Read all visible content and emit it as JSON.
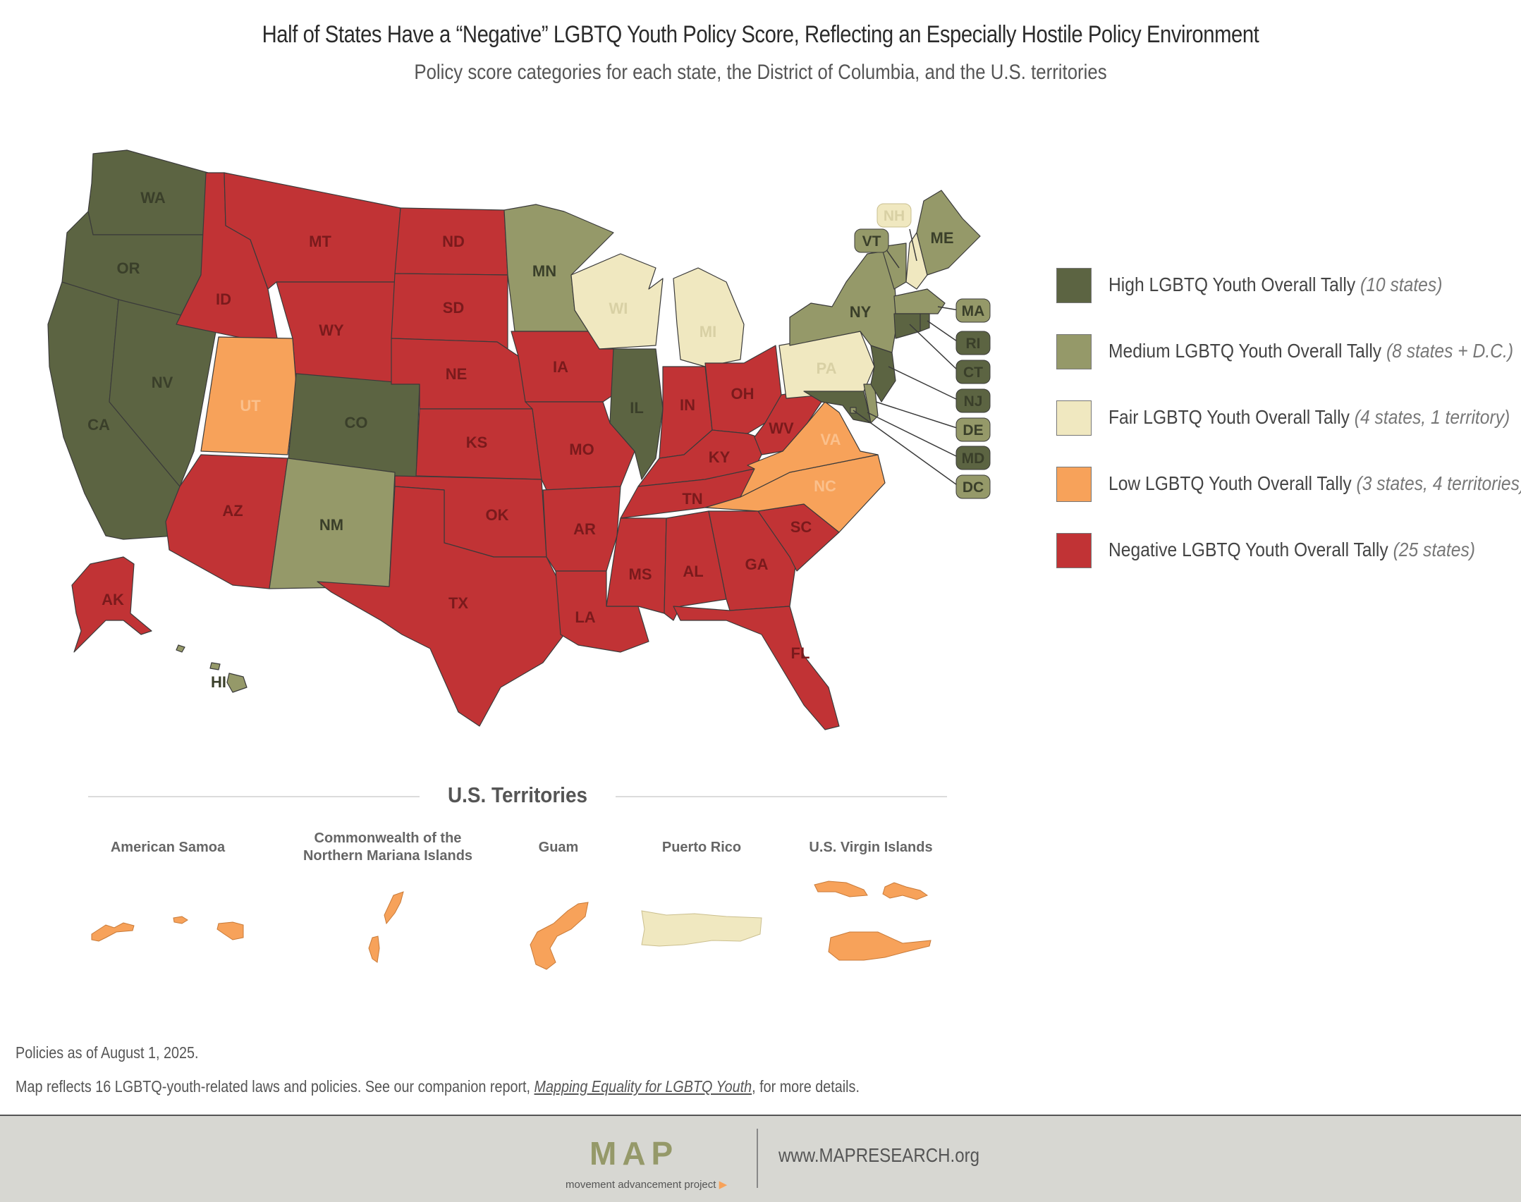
{
  "header": {
    "title": "Half of States Have a “Negative” LGBTQ Youth Policy Score, Reflecting an Especially Hostile Policy Environment",
    "subtitle": "Policy score categories for each state, the District of Columbia, and the U.S. territories"
  },
  "colors": {
    "high": "#5c6442",
    "medium": "#959969",
    "fair": "#f0e8c0",
    "low": "#f7a25a",
    "negative": "#c13335"
  },
  "legend": [
    {
      "key": "high",
      "label": "High LGBTQ Youth Overall Tally",
      "note": "(10 states)"
    },
    {
      "key": "medium",
      "label": "Medium LGBTQ Youth Overall Tally",
      "note": "(8 states + D.C.)"
    },
    {
      "key": "fair",
      "label": "Fair LGBTQ Youth Overall Tally",
      "note": "(4 states, 1 territory)"
    },
    {
      "key": "low",
      "label": "Low LGBTQ Youth Overall Tally",
      "note": "(3 states, 4 territories)"
    },
    {
      "key": "negative",
      "label": "Negative LGBTQ Youth Overall Tally",
      "note": "(25 states)"
    }
  ],
  "states": [
    {
      "code": "WA",
      "category": "high"
    },
    {
      "code": "OR",
      "category": "high"
    },
    {
      "code": "CA",
      "category": "high"
    },
    {
      "code": "NV",
      "category": "high"
    },
    {
      "code": "CO",
      "category": "high"
    },
    {
      "code": "IL",
      "category": "high"
    },
    {
      "code": "NJ",
      "category": "high"
    },
    {
      "code": "RI",
      "category": "high"
    },
    {
      "code": "CT",
      "category": "high"
    },
    {
      "code": "MD",
      "category": "high"
    },
    {
      "code": "MN",
      "category": "medium"
    },
    {
      "code": "NM",
      "category": "medium"
    },
    {
      "code": "NY",
      "category": "medium"
    },
    {
      "code": "VT",
      "category": "medium"
    },
    {
      "code": "ME",
      "category": "medium"
    },
    {
      "code": "MA",
      "category": "medium"
    },
    {
      "code": "DE",
      "category": "medium"
    },
    {
      "code": "HI",
      "category": "medium"
    },
    {
      "code": "DC",
      "category": "medium"
    },
    {
      "code": "WI",
      "category": "fair"
    },
    {
      "code": "MI",
      "category": "fair"
    },
    {
      "code": "PA",
      "category": "fair"
    },
    {
      "code": "NH",
      "category": "fair"
    },
    {
      "code": "UT",
      "category": "low"
    },
    {
      "code": "VA",
      "category": "low"
    },
    {
      "code": "NC",
      "category": "low"
    },
    {
      "code": "ID",
      "category": "negative"
    },
    {
      "code": "MT",
      "category": "negative"
    },
    {
      "code": "WY",
      "category": "negative"
    },
    {
      "code": "ND",
      "category": "negative"
    },
    {
      "code": "SD",
      "category": "negative"
    },
    {
      "code": "NE",
      "category": "negative"
    },
    {
      "code": "KS",
      "category": "negative"
    },
    {
      "code": "OK",
      "category": "negative"
    },
    {
      "code": "TX",
      "category": "negative"
    },
    {
      "code": "AZ",
      "category": "negative"
    },
    {
      "code": "IA",
      "category": "negative"
    },
    {
      "code": "MO",
      "category": "negative"
    },
    {
      "code": "AR",
      "category": "negative"
    },
    {
      "code": "LA",
      "category": "negative"
    },
    {
      "code": "MS",
      "category": "negative"
    },
    {
      "code": "AL",
      "category": "negative"
    },
    {
      "code": "TN",
      "category": "negative"
    },
    {
      "code": "KY",
      "category": "negative"
    },
    {
      "code": "IN",
      "category": "negative"
    },
    {
      "code": "OH",
      "category": "negative"
    },
    {
      "code": "WV",
      "category": "negative"
    },
    {
      "code": "GA",
      "category": "negative"
    },
    {
      "code": "SC",
      "category": "negative"
    },
    {
      "code": "FL",
      "category": "negative"
    },
    {
      "code": "AK",
      "category": "negative"
    }
  ],
  "territories": {
    "heading": "U.S. Territories",
    "items": [
      {
        "name": "American Samoa",
        "category": "low"
      },
      {
        "name": "Commonwealth of the Northern Mariana Islands",
        "name_line1": "Commonwealth of the",
        "name_line2": "Northern Mariana Islands",
        "category": "low"
      },
      {
        "name": "Guam",
        "category": "low"
      },
      {
        "name": "Puerto Rico",
        "category": "fair"
      },
      {
        "name": "U.S. Virgin Islands",
        "category": "low"
      }
    ]
  },
  "footnotes": {
    "date_note": "Policies as of August 1, 2025.",
    "report_prefix": "Map reflects 16 LGBTQ-youth-related laws and policies. See our companion report, ",
    "report_link": "Mapping Equality for LGBTQ Youth",
    "report_suffix": ", for more details."
  },
  "footer": {
    "logo": "MAP",
    "tagline": "movement advancement project",
    "url": "www.MAPRESEARCH.org"
  }
}
